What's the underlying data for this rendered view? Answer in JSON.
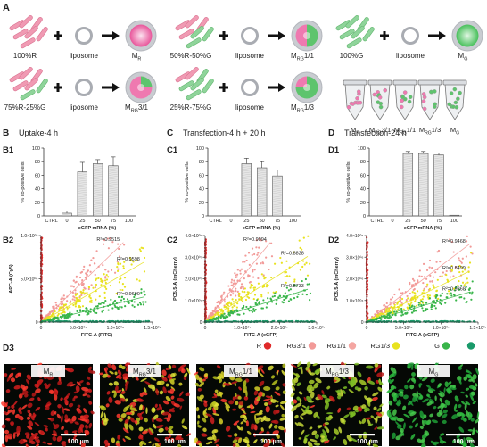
{
  "panel_a": {
    "letter": "A",
    "liposome": "liposome",
    "groups": [
      {
        "label": "100%R",
        "mix": [
          1,
          0
        ],
        "result": "M",
        "sub": "R",
        "suffix": ""
      },
      {
        "label": "50%R-50%G",
        "mix": [
          0.5,
          0.5
        ],
        "result": "M",
        "sub": "RG",
        "suffix": "1/1"
      },
      {
        "label": "100%G",
        "mix": [
          0,
          1
        ],
        "result": "M",
        "sub": "G",
        "suffix": ""
      },
      {
        "label": "75%R-25%G",
        "mix": [
          0.75,
          0.25
        ],
        "result": "M",
        "sub": "RG",
        "suffix": "3/1"
      },
      {
        "label": "25%R-75%G",
        "mix": [
          0.25,
          0.75
        ],
        "result": "M",
        "sub": "RG",
        "suffix": "1/3"
      }
    ],
    "tubes": [
      {
        "main": "M",
        "sub": "R",
        "suffix": ""
      },
      {
        "main": "M",
        "sub": "RG",
        "suffix": "3/1"
      },
      {
        "main": "M",
        "sub": "RG",
        "suffix": "1/1"
      },
      {
        "main": "M",
        "sub": "RG",
        "suffix": "1/3"
      },
      {
        "main": "M",
        "sub": "G",
        "suffix": ""
      }
    ]
  },
  "sections": [
    {
      "letter": "B",
      "title": "Uptake-4 h"
    },
    {
      "letter": "C",
      "title": "Transfection-4 h + 20 h"
    },
    {
      "letter": "D",
      "title": "Transfection-24 h"
    }
  ],
  "bar_panels": [
    {
      "id": "B1",
      "ylabel": "% co-positive cells",
      "xlabel": "eGFP mRNA (%)",
      "chart_data": {
        "type": "bar",
        "categories": [
          "CTRL",
          "0",
          "25",
          "50",
          "75",
          "100"
        ],
        "values": [
          0,
          4,
          65,
          77,
          74,
          0
        ],
        "errors": [
          0,
          3,
          14,
          6,
          13,
          0
        ],
        "ylim": [
          0,
          100
        ],
        "yticks": [
          "0",
          "20",
          "40",
          "60",
          "80",
          "100"
        ]
      }
    },
    {
      "id": "C1",
      "ylabel": "% co-positive cells",
      "xlabel": "eGFP mRNA (%)",
      "chart_data": {
        "type": "bar",
        "categories": [
          "CTRL",
          "0",
          "25",
          "50",
          "75",
          "100"
        ],
        "values": [
          0,
          0,
          77,
          71,
          59,
          0
        ],
        "errors": [
          0,
          0,
          8,
          9,
          9,
          0
        ],
        "ylim": [
          0,
          100
        ],
        "yticks": [
          "0",
          "20",
          "40",
          "60",
          "80",
          "100"
        ]
      }
    },
    {
      "id": "D1",
      "ylabel": "% co-positive cells",
      "xlabel": "eGFP mRNA (%)",
      "chart_data": {
        "type": "bar",
        "categories": [
          "CTRL",
          "0",
          "25",
          "50",
          "75",
          "100"
        ],
        "values": [
          0,
          0,
          92,
          92,
          90,
          1
        ],
        "errors": [
          0,
          0,
          3,
          3,
          3,
          0
        ],
        "ylim": [
          0,
          100
        ],
        "yticks": [
          "0",
          "20",
          "40",
          "60",
          "80",
          "100"
        ]
      }
    }
  ],
  "scatter_panels": [
    {
      "id": "B2",
      "ylabel": "APC-A (Cy5)",
      "xlabel": "FITC-A (FITC)",
      "yticks": [
        {
          "v": 0,
          "t": "0"
        },
        {
          "v": 5000000,
          "t": "5.0×10⁰⁶"
        },
        {
          "v": 10000000,
          "t": "1.0×10⁰⁷"
        }
      ],
      "xticks": [
        {
          "v": 0,
          "t": "0"
        },
        {
          "v": 500000,
          "t": "5.0×10⁰⁵"
        },
        {
          "v": 1000000,
          "t": "1.0×10⁰⁶"
        },
        {
          "v": 1500000,
          "t": "1.5×10⁰⁶"
        }
      ],
      "chart_data": {
        "type": "scatter",
        "xlim": [
          0,
          1500000
        ],
        "ylim": [
          0,
          10000000
        ],
        "series": [
          {
            "color": "#e02a2a",
            "slope": 4000,
            "r2": ""
          },
          {
            "color": "#f29a98",
            "slope": 8.3,
            "r2": "R²=0.9515"
          },
          {
            "color": "#e8e21f",
            "slope": 5.0,
            "r2": "R²=0.9598"
          },
          {
            "color": "#39b54a",
            "slope": 2.1,
            "r2": "R²=0.9690"
          },
          {
            "color": "#1a9a6a",
            "slope": 0.02,
            "r2": ""
          }
        ]
      }
    },
    {
      "id": "C2",
      "ylabel": "PC5.5-A (mCherry)",
      "xlabel": "FITC-A (eGFP)",
      "yticks": [
        {
          "v": 0,
          "t": "0"
        },
        {
          "v": 10000000,
          "t": "1.0×10⁰⁷"
        },
        {
          "v": 20000000,
          "t": "2.0×10⁰⁷"
        },
        {
          "v": 30000000,
          "t": "3.0×10⁰⁷"
        },
        {
          "v": 40000000,
          "t": "4.0×10⁰⁷"
        }
      ],
      "xticks": [
        {
          "v": 0,
          "t": "0"
        },
        {
          "v": 10000000,
          "t": "1.0×10⁰⁷"
        },
        {
          "v": 20000000,
          "t": "2.0×10⁰⁷"
        },
        {
          "v": 30000000,
          "t": "3.0×10⁰⁷"
        }
      ],
      "chart_data": {
        "type": "scatter",
        "xlim": [
          0,
          30000000
        ],
        "ylim": [
          0,
          40000000
        ],
        "series": [
          {
            "color": "#e02a2a",
            "slope": 500,
            "r2": ""
          },
          {
            "color": "#f29a98",
            "slope": 2.1,
            "r2": "R²=0.9094"
          },
          {
            "color": "#e8e21f",
            "slope": 1.1,
            "r2": "R²=0.8828"
          },
          {
            "color": "#39b54a",
            "slope": 0.55,
            "r2": "R²=0.8733"
          },
          {
            "color": "#1a9a6a",
            "slope": 0.02,
            "r2": ""
          }
        ]
      }
    },
    {
      "id": "D2",
      "ylabel": "PC5.5-A (mCherry)",
      "xlabel": "FITC-A (eGFP)",
      "yticks": [
        {
          "v": 0,
          "t": "0"
        },
        {
          "v": 1000000,
          "t": "1.0×10⁰⁶"
        },
        {
          "v": 2000000,
          "t": "2.0×10⁰⁶"
        },
        {
          "v": 3000000,
          "t": "3.0×10⁰⁶"
        },
        {
          "v": 4000000,
          "t": "4.0×10⁰⁶"
        }
      ],
      "xticks": [
        {
          "v": 0,
          "t": "0"
        },
        {
          "v": 5000000,
          "t": "5.0×10⁰⁶"
        },
        {
          "v": 10000000,
          "t": "1.0×10⁰⁷"
        },
        {
          "v": 15000000,
          "t": "1.5×10⁰⁷"
        }
      ],
      "chart_data": {
        "type": "scatter",
        "xlim": [
          0,
          15000000
        ],
        "ylim": [
          0,
          4000000
        ],
        "series": [
          {
            "color": "#e02a2a",
            "slope": 200,
            "r2": ""
          },
          {
            "color": "#f29a98",
            "slope": 0.26,
            "r2": "R²=0.9468"
          },
          {
            "color": "#e8e21f",
            "slope": 0.17,
            "r2": "R²=0.8499"
          },
          {
            "color": "#39b54a",
            "slope": 0.1,
            "r2": "R²=0.9368"
          },
          {
            "color": "#1a9a6a",
            "slope": 0.003,
            "r2": ""
          }
        ]
      }
    }
  ],
  "legend": [
    {
      "label": "R",
      "color": "#e02a2a"
    },
    {
      "label": "RG3/1",
      "color": "#f29a98"
    },
    {
      "label": "RG1/1",
      "color": "#f4a6a2"
    },
    {
      "label": "RG1/3",
      "color": "#e8e21f"
    },
    {
      "label": "G",
      "color": "#39b54a"
    },
    {
      "label": "",
      "color": "#1a9a6a"
    }
  ],
  "panel_d3": {
    "letter": "D3",
    "scale_bar": "100 μm",
    "images": [
      {
        "main": "M",
        "sub": "R",
        "suffix": "",
        "mix": [
          1,
          0
        ]
      },
      {
        "main": "M",
        "sub": "RG",
        "suffix": "3/1",
        "mix": [
          0.55,
          0.45
        ]
      },
      {
        "main": "M",
        "sub": "RG",
        "suffix": "1/1",
        "mix": [
          0.35,
          0.65
        ]
      },
      {
        "main": "M",
        "sub": "RG",
        "suffix": "1/3",
        "mix": [
          0.18,
          0.82
        ]
      },
      {
        "main": "M",
        "sub": "G",
        "suffix": "",
        "mix": [
          0,
          1
        ]
      }
    ]
  }
}
